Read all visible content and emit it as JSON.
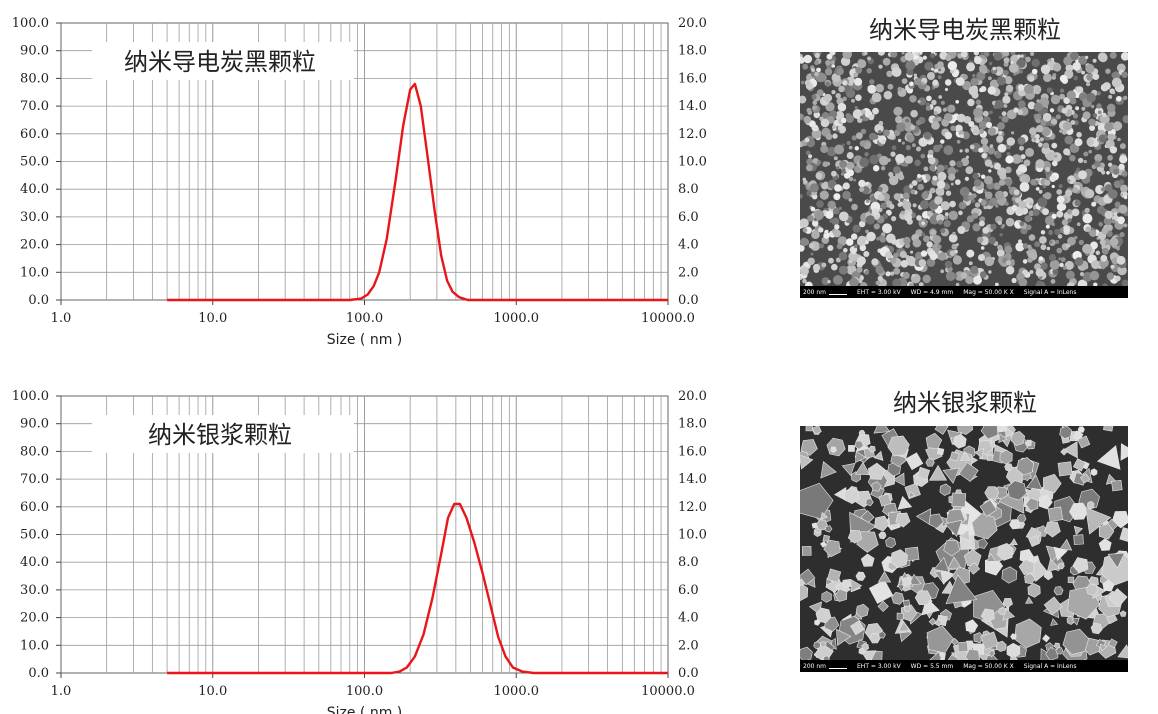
{
  "chart_data": [
    {
      "type": "line",
      "title": "纳米导电炭黑颗粒",
      "xlabel": "Size ( nm )",
      "ylabel": "",
      "xscale": "log",
      "xlim": [
        1,
        10000
      ],
      "ylim": [
        0,
        100
      ],
      "y2lim": [
        0,
        20
      ],
      "grid": true,
      "x_ticks": [
        "1.0",
        "10.0",
        "100.0",
        "1000.0",
        "10000.0"
      ],
      "y_ticks": [
        "0.0",
        "10.0",
        "20.0",
        "30.0",
        "40.0",
        "50.0",
        "60.0",
        "70.0",
        "80.0",
        "90.0",
        "100.0"
      ],
      "y2_ticks": [
        "0.0",
        "2.0",
        "4.0",
        "6.0",
        "8.0",
        "10.0",
        "12.0",
        "14.0",
        "16.0",
        "18.0",
        "20.0"
      ],
      "series": [
        {
          "color": "#e8161b",
          "x": [
            5,
            80,
            95,
            105,
            115,
            125,
            140,
            160,
            180,
            200,
            215,
            235,
            260,
            290,
            320,
            350,
            380,
            420,
            480,
            600,
            10000
          ],
          "y": [
            0,
            0,
            0.5,
            2,
            5,
            10,
            22,
            43,
            63,
            76,
            78,
            70,
            52,
            32,
            16,
            7,
            3,
            1,
            0,
            0,
            0
          ]
        }
      ]
    },
    {
      "type": "line",
      "title": "纳米银浆颗粒",
      "xlabel": "Size ( nm )",
      "ylabel": "",
      "xscale": "log",
      "xlim": [
        1,
        10000
      ],
      "ylim": [
        0,
        100
      ],
      "y2lim": [
        0,
        20
      ],
      "grid": true,
      "x_ticks": [
        "1.0",
        "10.0",
        "100.0",
        "1000.0",
        "10000.0"
      ],
      "y_ticks": [
        "0.0",
        "10.0",
        "20.0",
        "30.0",
        "40.0",
        "50.0",
        "60.0",
        "70.0",
        "80.0",
        "90.0",
        "100.0"
      ],
      "y2_ticks": [
        "0.0",
        "2.0",
        "4.0",
        "6.0",
        "8.0",
        "10.0",
        "12.0",
        "14.0",
        "16.0",
        "18.0",
        "20.0"
      ],
      "series": [
        {
          "color": "#e8161b",
          "x": [
            5,
            150,
            170,
            190,
            215,
            245,
            280,
            320,
            355,
            390,
            425,
            470,
            530,
            600,
            680,
            760,
            850,
            950,
            1100,
            1300,
            10000
          ],
          "y": [
            0,
            0,
            0.5,
            2,
            6,
            14,
            27,
            43,
            56,
            61,
            61,
            56,
            47,
            36,
            24,
            13,
            6,
            2,
            0.5,
            0,
            0
          ]
        }
      ]
    }
  ],
  "panels": [
    {
      "title": "纳米导电炭黑颗粒",
      "info": {
        "scale": "200 nm",
        "eht": "EHT = 3.00 kV",
        "wd": "WD = 4.9 mm",
        "mag": "Mag = 50.00 K X",
        "signal": "Signal A = InLens"
      }
    },
    {
      "title": "纳米银浆颗粒",
      "info": {
        "scale": "200 nm",
        "eht": "EHT = 3.00 kV",
        "wd": "WD = 5.5 mm",
        "mag": "Mag = 50.00 K X",
        "signal": "Signal A = InLens"
      }
    }
  ]
}
